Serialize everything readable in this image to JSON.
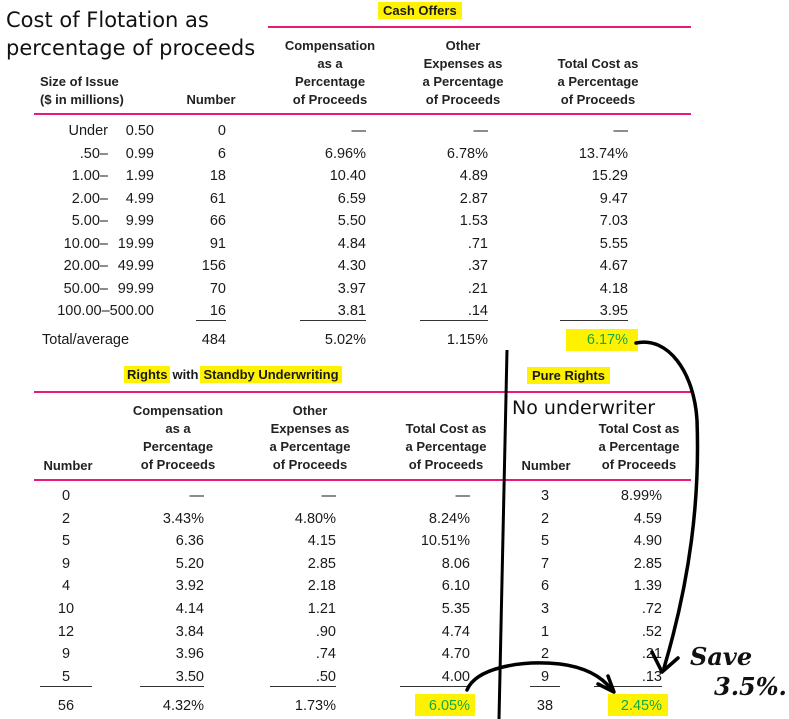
{
  "annotation_title_line1": "Cost of Flotation as",
  "annotation_title_line2": "percentage of proceeds",
  "annotation_no_underwriter": "No underwriter",
  "annotation_save_line1": "Save",
  "annotation_save_line2": "3.5%.",
  "highlight_color": "#fff200",
  "rule_color": "#e8197a",
  "green_color": "#11a84a",
  "cash": {
    "title": "Cash Offers",
    "headers": {
      "size": [
        "Size of Issue",
        "($ in millions)"
      ],
      "number": "Number",
      "compensation": [
        "Compensation",
        "as a",
        "Percentage",
        "of Proceeds"
      ],
      "other": [
        "Other",
        "Expenses as",
        "a Percentage",
        "of Proceeds"
      ],
      "total": [
        "Total Cost as",
        "a Percentage",
        "of Proceeds"
      ]
    },
    "rows": [
      {
        "lo": "Under",
        "hi": "0.50",
        "num": "0",
        "comp": "—",
        "other": "—",
        "total": "—"
      },
      {
        "lo": ".50–",
        "hi": "0.99",
        "num": "6",
        "comp": "6.96%",
        "other": "6.78%",
        "total": "13.74%"
      },
      {
        "lo": "1.00–",
        "hi": "1.99",
        "num": "18",
        "comp": "10.40",
        "other": "4.89",
        "total": "15.29"
      },
      {
        "lo": "2.00–",
        "hi": "4.99",
        "num": "61",
        "comp": "6.59",
        "other": "2.87",
        "total": "9.47"
      },
      {
        "lo": "5.00–",
        "hi": "9.99",
        "num": "66",
        "comp": "5.50",
        "other": "1.53",
        "total": "7.03"
      },
      {
        "lo": "10.00–",
        "hi": "19.99",
        "num": "91",
        "comp": "4.84",
        "other": ".71",
        "total": "5.55"
      },
      {
        "lo": "20.00–",
        "hi": "49.99",
        "num": "156",
        "comp": "4.30",
        "other": ".37",
        "total": "4.67"
      },
      {
        "lo": "50.00–",
        "hi": "99.99",
        "num": "70",
        "comp": "3.97",
        "other": ".21",
        "total": "4.18"
      },
      {
        "lo": "100.00–500.00",
        "hi": "",
        "num": "16",
        "comp": "3.81",
        "other": ".14",
        "total": "3.95"
      }
    ],
    "total": {
      "label": "Total/average",
      "num": "484",
      "comp": "5.02%",
      "other": "1.15%",
      "total": "6.17%"
    }
  },
  "rights": {
    "title_a": "Rights",
    "title_with": "with",
    "title_b": "Standby Underwriting",
    "headers": {
      "number": "Number",
      "compensation": [
        "Compensation",
        "as a",
        "Percentage",
        "of Proceeds"
      ],
      "other": [
        "Other",
        "Expenses as",
        "a Percentage",
        "of Proceeds"
      ],
      "total": [
        "Total Cost as",
        "a Percentage",
        "of Proceeds"
      ]
    },
    "rows": [
      {
        "num": "0",
        "comp": "—",
        "other": "—",
        "total": "—"
      },
      {
        "num": "2",
        "comp": "3.43%",
        "other": "4.80%",
        "total": "8.24%"
      },
      {
        "num": "5",
        "comp": "6.36",
        "other": "4.15",
        "total": "10.51%"
      },
      {
        "num": "9",
        "comp": "5.20",
        "other": "2.85",
        "total": "8.06"
      },
      {
        "num": "4",
        "comp": "3.92",
        "other": "2.18",
        "total": "6.10"
      },
      {
        "num": "10",
        "comp": "4.14",
        "other": "1.21",
        "total": "5.35"
      },
      {
        "num": "12",
        "comp": "3.84",
        "other": ".90",
        "total": "4.74"
      },
      {
        "num": "9",
        "comp": "3.96",
        "other": ".74",
        "total": "4.70"
      },
      {
        "num": "5",
        "comp": "3.50",
        "other": ".50",
        "total": "4.00"
      }
    ],
    "total": {
      "num": "56",
      "comp": "4.32%",
      "other": "1.73%",
      "total": "6.05%"
    }
  },
  "pure": {
    "title": "Pure Rights",
    "headers": {
      "number": "Number",
      "total": [
        "Total Cost as",
        "a Percentage",
        "of Proceeds"
      ]
    },
    "rows": [
      {
        "num": "3",
        "total": "8.99%"
      },
      {
        "num": "2",
        "total": "4.59"
      },
      {
        "num": "5",
        "total": "4.90"
      },
      {
        "num": "7",
        "total": "2.85"
      },
      {
        "num": "6",
        "total": "1.39"
      },
      {
        "num": "3",
        "total": ".72"
      },
      {
        "num": "1",
        "total": ".52"
      },
      {
        "num": "2",
        "total": ".21"
      },
      {
        "num": "9",
        "total": ".13"
      }
    ],
    "total": {
      "num": "38",
      "total": "2.45%"
    }
  }
}
